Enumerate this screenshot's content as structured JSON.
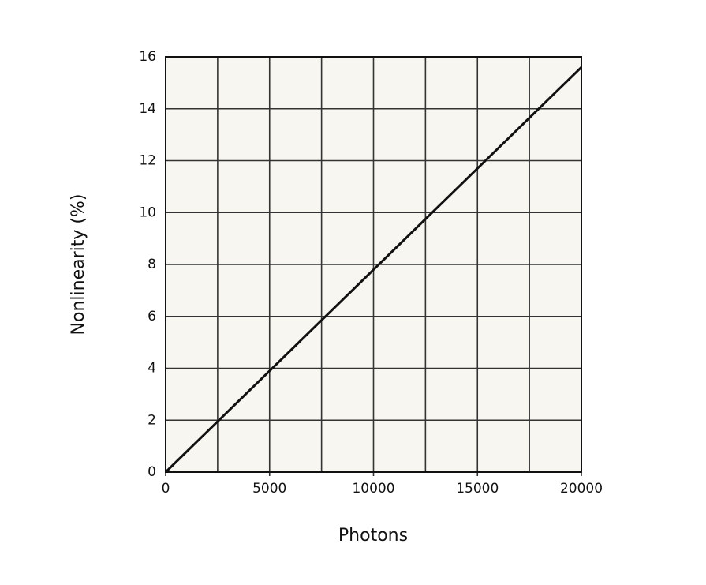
{
  "chart_data": {
    "type": "line",
    "x_label": "Photons",
    "y_label": "Nonlinearity (%)",
    "x": [
      0,
      20000
    ],
    "series": [
      {
        "color": "#111111",
        "values": [
          0,
          15.6
        ]
      }
    ],
    "xlim": [
      0,
      20000
    ],
    "xticks": [
      0,
      5000,
      10000,
      15000,
      20000
    ],
    "xgrid": [
      0,
      2500,
      5000,
      7500,
      10000,
      12500,
      15000,
      17500,
      20000
    ],
    "ylim": [
      0,
      16
    ],
    "yticks": [
      0,
      2,
      4,
      6,
      8,
      10,
      12,
      14,
      16
    ],
    "grid": true,
    "background": "#f7f6f0"
  }
}
